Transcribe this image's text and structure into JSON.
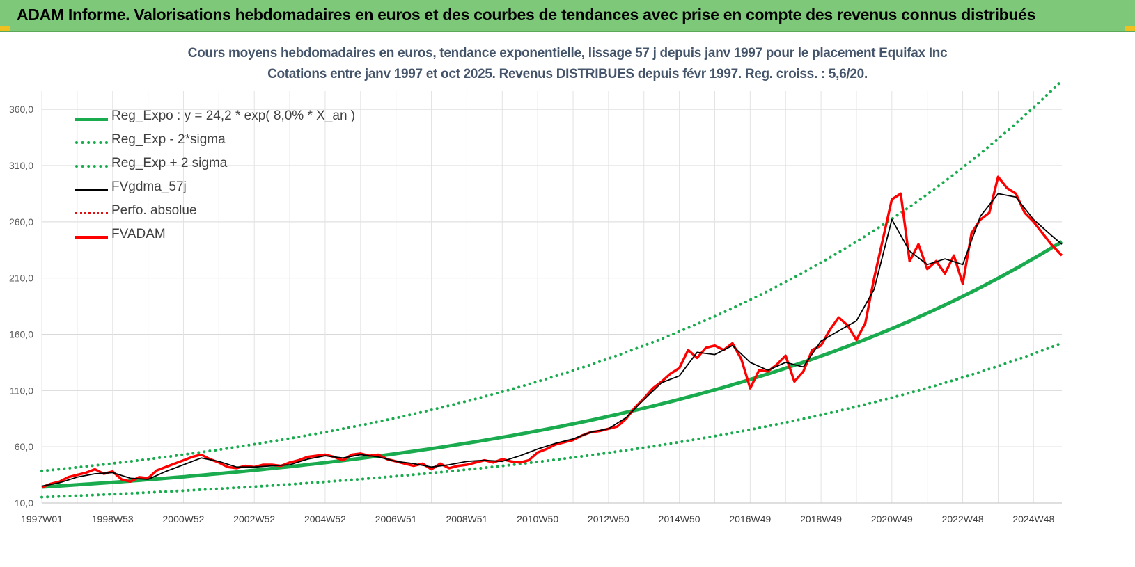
{
  "banner": {
    "title": "ADAM Informe. Valorisations hebdomadaires en euros et des courbes de tendances avec prise en compte des revenus connus distribués"
  },
  "chart_data": {
    "type": "line",
    "title": "Cours moyens hebdomadaires en euros, tendance exponentielle, lissage 57 j depuis janv 1997 pour le placement Equifax Inc",
    "subtitle": "Cotations entre janv 1997 et oct 2025. Revenus DISTRIBUES depuis févr 1997. Reg. croiss. : 5,6/20.",
    "xlabel": "",
    "ylabel": "",
    "x_tick_labels": [
      "1997W01",
      "1998W53",
      "2000W52",
      "2002W52",
      "2004W52",
      "2006W51",
      "2008W51",
      "2010W50",
      "2012W50",
      "2014W50",
      "2016W49",
      "2018W49",
      "2020W49",
      "2022W48",
      "2024W48"
    ],
    "y_tick_labels": [
      "10,0",
      "60,0",
      "110,0",
      "160,0",
      "210,0",
      "260,0",
      "310,0",
      "360,0"
    ],
    "ylim": [
      10,
      380
    ],
    "xlim": [
      1997.0,
      2025.8
    ],
    "grid": true,
    "legend_position": "top-left",
    "colors": {
      "reg_expo": "#1aab4f",
      "reg_minus": "#1aab4f",
      "reg_plus": "#1aab4f",
      "fvgdma": "#000000",
      "perfo": "#e01010",
      "fvadam": "#ff0000"
    },
    "series": [
      {
        "name": "Reg_Expo : y = 24,2 * exp( 8,0% *  X_an )",
        "style": "solid-thick",
        "color_key": "reg_expo",
        "model": {
          "a": 24.2,
          "rate": 0.08,
          "x0": 1997.0
        }
      },
      {
        "name": "Reg_Exp - 2*sigma",
        "style": "dotted",
        "color_key": "reg_minus",
        "model": {
          "a": 15.2,
          "rate": 0.08,
          "x0": 1997.0
        }
      },
      {
        "name": "Reg_Exp + 2 sigma",
        "style": "dotted",
        "color_key": "reg_plus",
        "model": {
          "a": 38.5,
          "rate": 0.08,
          "x0": 1997.0
        }
      },
      {
        "name": "FVgdma_57j",
        "style": "solid-thin",
        "color_key": "fvgdma",
        "x": [
          1997.0,
          1997.5,
          1998.0,
          1998.5,
          1999.0,
          1999.5,
          2000.0,
          2000.5,
          2001.0,
          2001.5,
          2002.0,
          2002.5,
          2003.0,
          2003.5,
          2004.0,
          2004.5,
          2005.0,
          2005.5,
          2006.0,
          2006.5,
          2007.0,
          2007.5,
          2008.0,
          2008.5,
          2009.0,
          2009.5,
          2010.0,
          2010.5,
          2011.0,
          2011.5,
          2012.0,
          2012.5,
          2013.0,
          2013.5,
          2014.0,
          2014.5,
          2015.0,
          2015.5,
          2016.0,
          2016.5,
          2017.0,
          2017.5,
          2018.0,
          2018.5,
          2019.0,
          2019.5,
          2020.0,
          2020.5,
          2021.0,
          2021.5,
          2022.0,
          2022.5,
          2023.0,
          2023.5,
          2024.0,
          2024.5,
          2025.0,
          2025.5,
          2025.8
        ],
        "values": [
          25,
          28,
          33,
          36,
          37,
          32,
          31,
          38,
          44,
          50,
          47,
          42,
          42,
          43,
          44,
          49,
          52,
          50,
          53,
          51,
          47,
          45,
          42,
          44,
          47,
          48,
          47,
          52,
          58,
          63,
          67,
          73,
          76,
          86,
          102,
          117,
          123,
          144,
          142,
          150,
          135,
          128,
          135,
          131,
          154,
          163,
          172,
          200,
          262,
          234,
          222,
          227,
          222,
          265,
          285,
          282,
          262,
          248,
          240
        ]
      },
      {
        "name": "Perfo. absolue",
        "style": "dotted",
        "color_key": "perfo",
        "x": [],
        "values": []
      },
      {
        "name": "FVADAM",
        "style": "solid-thick",
        "color_key": "fvadam",
        "x": [
          1997.0,
          1997.25,
          1997.5,
          1997.75,
          1998.0,
          1998.25,
          1998.5,
          1998.75,
          1999.0,
          1999.25,
          1999.5,
          1999.75,
          2000.0,
          2000.25,
          2000.5,
          2000.75,
          2001.0,
          2001.25,
          2001.5,
          2001.75,
          2002.0,
          2002.25,
          2002.5,
          2002.75,
          2003.0,
          2003.25,
          2003.5,
          2003.75,
          2004.0,
          2004.25,
          2004.5,
          2004.75,
          2005.0,
          2005.25,
          2005.5,
          2005.75,
          2006.0,
          2006.25,
          2006.5,
          2006.75,
          2007.0,
          2007.25,
          2007.5,
          2007.75,
          2008.0,
          2008.25,
          2008.5,
          2008.75,
          2009.0,
          2009.25,
          2009.5,
          2009.75,
          2010.0,
          2010.25,
          2010.5,
          2010.75,
          2011.0,
          2011.25,
          2011.5,
          2011.75,
          2012.0,
          2012.25,
          2012.5,
          2012.75,
          2013.0,
          2013.25,
          2013.5,
          2013.75,
          2014.0,
          2014.25,
          2014.5,
          2014.75,
          2015.0,
          2015.25,
          2015.5,
          2015.75,
          2016.0,
          2016.25,
          2016.5,
          2016.75,
          2017.0,
          2017.25,
          2017.5,
          2017.75,
          2018.0,
          2018.25,
          2018.5,
          2018.75,
          2019.0,
          2019.25,
          2019.5,
          2019.75,
          2020.0,
          2020.25,
          2020.5,
          2020.75,
          2021.0,
          2021.25,
          2021.5,
          2021.75,
          2022.0,
          2022.25,
          2022.5,
          2022.75,
          2023.0,
          2023.25,
          2023.5,
          2023.75,
          2024.0,
          2024.25,
          2024.5,
          2024.75,
          2025.0,
          2025.25,
          2025.5,
          2025.8
        ],
        "values": [
          24,
          27,
          29,
          33,
          35,
          37,
          40,
          36,
          38,
          31,
          29,
          33,
          32,
          39,
          42,
          45,
          48,
          51,
          53,
          49,
          46,
          42,
          41,
          43,
          42,
          44,
          44,
          43,
          46,
          48,
          51,
          52,
          53,
          51,
          48,
          53,
          54,
          52,
          53,
          49,
          47,
          45,
          43,
          45,
          40,
          45,
          41,
          43,
          44,
          46,
          48,
          46,
          49,
          47,
          46,
          48,
          55,
          58,
          62,
          64,
          66,
          70,
          73,
          74,
          76,
          78,
          85,
          95,
          103,
          112,
          118,
          125,
          130,
          146,
          139,
          148,
          150,
          146,
          152,
          138,
          112,
          128,
          127,
          133,
          141,
          118,
          127,
          146,
          150,
          164,
          175,
          168,
          155,
          170,
          210,
          245,
          280,
          285,
          225,
          240,
          218,
          225,
          214,
          230,
          205,
          250,
          262,
          268,
          300,
          290,
          285,
          268,
          260,
          250,
          240,
          230
        ]
      }
    ]
  }
}
